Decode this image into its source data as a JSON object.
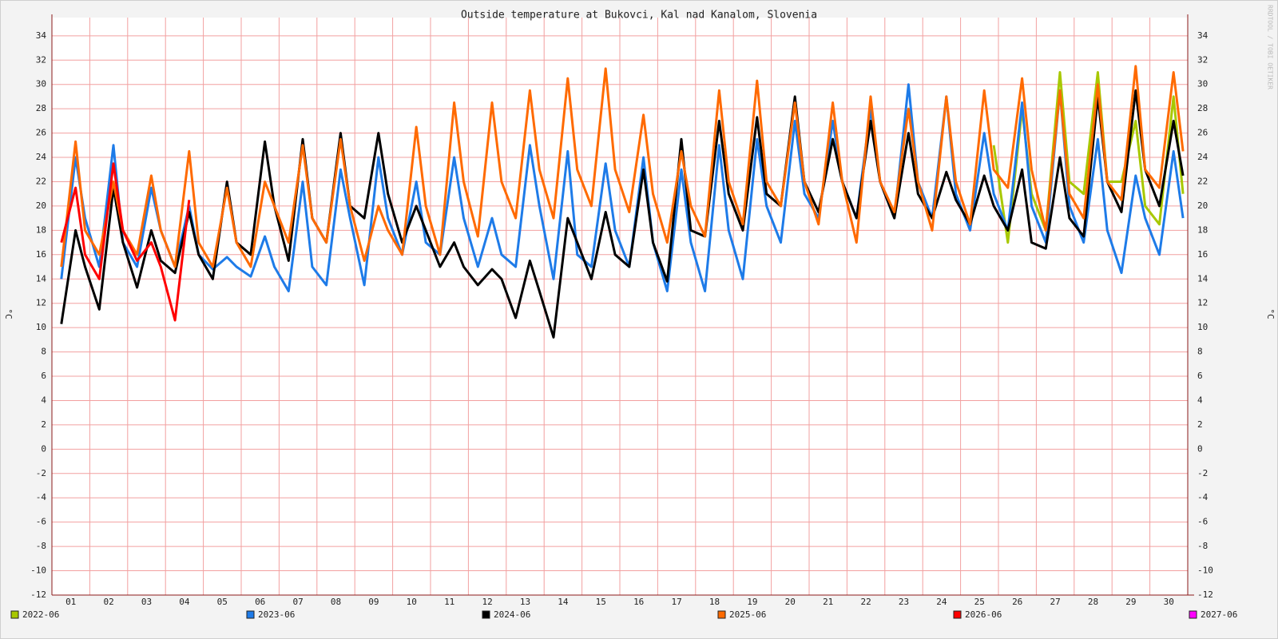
{
  "chart_data": {
    "type": "line",
    "title": "Outside temperature at Bukovci, Kal nad Kanalom, Slovenia",
    "y_label": "°C",
    "watermark": "RRDTOOL / TOBI OETIKER",
    "grid": true,
    "xlim": [
      0,
      30
    ],
    "xticks": [
      {
        "value": 0.5,
        "label": "01"
      },
      {
        "value": 1.5,
        "label": "02"
      },
      {
        "value": 2.5,
        "label": "03"
      },
      {
        "value": 3.5,
        "label": "04"
      },
      {
        "value": 4.5,
        "label": "05"
      },
      {
        "value": 5.5,
        "label": "06"
      },
      {
        "value": 6.5,
        "label": "07"
      },
      {
        "value": 7.5,
        "label": "08"
      },
      {
        "value": 8.5,
        "label": "09"
      },
      {
        "value": 9.5,
        "label": "10"
      },
      {
        "value": 10.5,
        "label": "11"
      },
      {
        "value": 11.5,
        "label": "12"
      },
      {
        "value": 12.5,
        "label": "13"
      },
      {
        "value": 13.5,
        "label": "14"
      },
      {
        "value": 14.5,
        "label": "15"
      },
      {
        "value": 15.5,
        "label": "16"
      },
      {
        "value": 16.5,
        "label": "17"
      },
      {
        "value": 17.5,
        "label": "18"
      },
      {
        "value": 18.5,
        "label": "19"
      },
      {
        "value": 19.5,
        "label": "20"
      },
      {
        "value": 20.5,
        "label": "21"
      },
      {
        "value": 21.5,
        "label": "22"
      },
      {
        "value": 22.5,
        "label": "23"
      },
      {
        "value": 23.5,
        "label": "24"
      },
      {
        "value": 24.5,
        "label": "25"
      },
      {
        "value": 25.5,
        "label": "26"
      },
      {
        "value": 26.5,
        "label": "27"
      },
      {
        "value": 27.5,
        "label": "28"
      },
      {
        "value": 28.5,
        "label": "29"
      },
      {
        "value": 29.5,
        "label": "30"
      }
    ],
    "xgrid": [
      1,
      2,
      3,
      4,
      5,
      6,
      7,
      8,
      9,
      10,
      11,
      12,
      13,
      14,
      15,
      16,
      17,
      18,
      19,
      20,
      21,
      22,
      23,
      24,
      25,
      26,
      27,
      28,
      29
    ],
    "ylim": [
      -12,
      35.5
    ],
    "yticks": [
      -12,
      -10,
      -8,
      -6,
      -4,
      -2,
      0,
      2,
      4,
      6,
      8,
      10,
      12,
      14,
      16,
      18,
      20,
      22,
      24,
      26,
      28,
      30,
      32,
      34
    ],
    "x": [
      0.25,
      0.625,
      0.875,
      1.25,
      1.625,
      1.875,
      2.25,
      2.625,
      2.875,
      3.25,
      3.625,
      3.875,
      4.25,
      4.625,
      4.875,
      5.25,
      5.625,
      5.875,
      6.25,
      6.625,
      6.875,
      7.25,
      7.625,
      7.875,
      8.25,
      8.625,
      8.875,
      9.25,
      9.625,
      9.875,
      10.25,
      10.625,
      10.875,
      11.25,
      11.625,
      11.875,
      12.25,
      12.625,
      12.875,
      13.25,
      13.625,
      13.875,
      14.25,
      14.625,
      14.875,
      15.25,
      15.625,
      15.875,
      16.25,
      16.625,
      16.875,
      17.25,
      17.625,
      17.875,
      18.25,
      18.625,
      18.875,
      19.25,
      19.625,
      19.875,
      20.25,
      20.625,
      20.875,
      21.25,
      21.625,
      21.875,
      22.25,
      22.625,
      22.875,
      23.25,
      23.625,
      23.875,
      24.25,
      24.625,
      24.875,
      25.25,
      25.625,
      25.875,
      26.25,
      26.625,
      26.875,
      27.25,
      27.625,
      27.875,
      28.25,
      28.625,
      28.875,
      29.25,
      29.625,
      29.875
    ],
    "series": [
      {
        "name": "2022-06",
        "color": "#a8c800",
        "values": [
          null,
          null,
          null,
          null,
          null,
          null,
          null,
          null,
          null,
          null,
          null,
          null,
          null,
          null,
          null,
          null,
          null,
          null,
          null,
          null,
          null,
          null,
          null,
          null,
          null,
          null,
          null,
          null,
          null,
          null,
          null,
          null,
          null,
          null,
          null,
          null,
          null,
          null,
          null,
          null,
          null,
          null,
          null,
          null,
          null,
          null,
          null,
          null,
          null,
          null,
          null,
          null,
          null,
          null,
          null,
          null,
          null,
          null,
          null,
          null,
          null,
          null,
          null,
          null,
          null,
          null,
          null,
          null,
          null,
          null,
          null,
          null,
          null,
          null,
          25,
          17,
          28,
          21,
          18,
          31,
          22,
          21,
          31,
          22,
          22,
          27,
          20,
          18.5,
          29,
          21
        ]
      },
      {
        "name": "2023-06",
        "color": "#1e7be8",
        "values": [
          14,
          24,
          19,
          15,
          25,
          17,
          15,
          21.5,
          18,
          15,
          20,
          16,
          14.8,
          15.8,
          15,
          14.2,
          17.5,
          15,
          13,
          22,
          15,
          13.5,
          23,
          19,
          13.5,
          24,
          19,
          16,
          22,
          17,
          16,
          24,
          19,
          15,
          19,
          16,
          15,
          25,
          20,
          14,
          24.5,
          16,
          15,
          23.5,
          18,
          15,
          24,
          17,
          13,
          23,
          17,
          13,
          25,
          18,
          14,
          25.5,
          20,
          17,
          27,
          21,
          19,
          27,
          22,
          19,
          28,
          22,
          19,
          30,
          22,
          19,
          29,
          21,
          18,
          26,
          21,
          18,
          28.5,
          20,
          17,
          29.5,
          20,
          17,
          25.5,
          18,
          14.5,
          22.5,
          19,
          16,
          24.5,
          19
        ]
      },
      {
        "name": "2024-06",
        "color": "#000000",
        "values": [
          10.3,
          18,
          15,
          11.5,
          21.5,
          17,
          13.3,
          18,
          15.5,
          14.5,
          19.5,
          16,
          14,
          22,
          17,
          16,
          25.3,
          20,
          15.5,
          25.5,
          19,
          17,
          26,
          20,
          19,
          26,
          21,
          17,
          20,
          18,
          15,
          17,
          15,
          13.5,
          14.8,
          14,
          10.8,
          15.5,
          13,
          9.2,
          19,
          17,
          14,
          19.5,
          16,
          15,
          23,
          17,
          13.8,
          25.5,
          18,
          17.5,
          27,
          21,
          18,
          27.3,
          21,
          20,
          29,
          22,
          19.5,
          25.5,
          22,
          19,
          27,
          22,
          19,
          26,
          21,
          19,
          22.8,
          20.5,
          18.5,
          22.5,
          20,
          18,
          23,
          17,
          16.5,
          24,
          19,
          17.5,
          29,
          22,
          19.5,
          29.5,
          23,
          20,
          27,
          22.5
        ]
      },
      {
        "name": "2025-06",
        "color": "#ff6a00",
        "values": [
          15,
          25.3,
          18,
          16,
          22,
          18,
          16,
          22.5,
          18,
          15,
          24.5,
          17,
          15,
          21.5,
          17,
          15,
          22,
          20,
          17,
          25,
          19,
          17,
          25.5,
          20,
          15.5,
          20,
          18,
          16,
          26.5,
          20,
          16,
          28.5,
          22,
          17.5,
          28.5,
          22,
          19,
          29.5,
          23,
          19,
          30.5,
          23,
          20,
          31.3,
          23,
          19.5,
          27.5,
          21,
          17,
          24.5,
          20,
          17.5,
          29.5,
          22,
          18.5,
          30.3,
          22,
          20,
          28.5,
          22,
          18.5,
          28.5,
          22,
          17,
          29,
          22,
          19.5,
          28,
          22,
          18,
          29,
          22,
          18.5,
          29.5,
          23,
          21.5,
          30.5,
          23,
          18,
          29.5,
          21,
          19,
          30,
          22,
          20.5,
          31.5,
          23,
          21.5,
          31,
          24.5
        ]
      },
      {
        "name": "2026-06",
        "color": "#ff0000",
        "values": [
          17,
          21.5,
          16,
          14,
          23.5,
          18,
          15.5,
          17,
          15,
          10.6,
          20.5,
          null,
          null,
          null,
          null,
          null,
          null,
          null,
          null,
          null,
          null,
          null,
          null,
          null,
          null,
          null,
          null,
          null,
          null,
          null,
          null,
          null,
          null,
          null,
          null,
          null,
          null,
          null,
          null,
          null,
          null,
          null,
          null,
          null,
          null,
          null,
          null,
          null,
          null,
          null,
          null,
          null,
          null,
          null,
          null,
          null,
          null,
          null,
          null,
          null,
          null,
          null,
          null,
          null,
          null,
          null,
          null,
          null,
          null,
          null,
          null,
          null,
          null,
          null,
          null,
          null,
          null,
          null,
          null,
          null,
          null,
          null,
          null,
          null,
          null,
          null,
          null,
          null,
          null,
          null
        ]
      },
      {
        "name": "2027-06",
        "color": "#ff00ff",
        "values": [
          null,
          null,
          null,
          null,
          null,
          null,
          null,
          null,
          null,
          null,
          null,
          null,
          null,
          null,
          null,
          null,
          null,
          null,
          null,
          null,
          null,
          null,
          null,
          null,
          null,
          null,
          null,
          null,
          null,
          null,
          null,
          null,
          null,
          null,
          null,
          null,
          null,
          null,
          null,
          null,
          null,
          null,
          null,
          null,
          null,
          null,
          null,
          null,
          null,
          null,
          null,
          null,
          null,
          null,
          null,
          null,
          null,
          null,
          null,
          null,
          null,
          null,
          null,
          null,
          null,
          null,
          null,
          null,
          null,
          null,
          null,
          null,
          null,
          null,
          null,
          null,
          null,
          null,
          null,
          null,
          null,
          null,
          null,
          null,
          null,
          null,
          null,
          null,
          null,
          null
        ]
      }
    ]
  }
}
